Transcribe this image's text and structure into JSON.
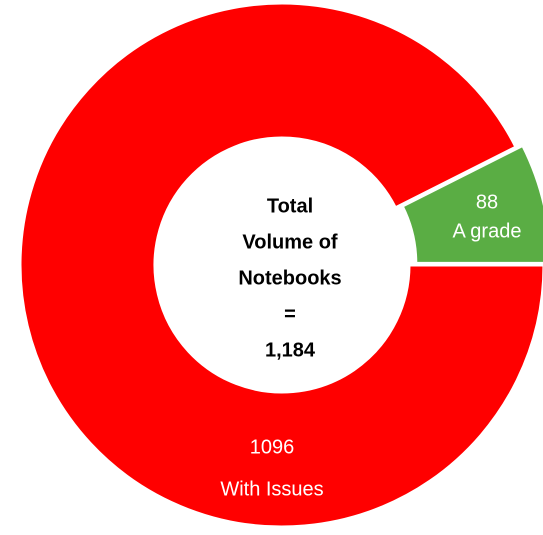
{
  "chart_data": {
    "type": "donut",
    "categories": [
      "A grade",
      "With Issues"
    ],
    "values": [
      88,
      1096
    ],
    "colors": [
      "#5aad44",
      "#ff0000"
    ],
    "center_text": [
      "Total",
      "Volume of",
      "Notebooks",
      "=",
      "1,184"
    ]
  }
}
